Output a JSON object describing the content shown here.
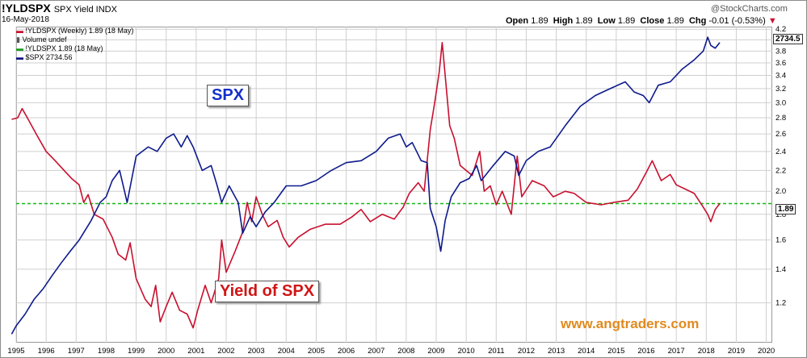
{
  "header": {
    "symbol": "!YLDSPX",
    "name": "SPX Yield INDX",
    "date": "16-May-2018",
    "quote": {
      "open_label": "Open",
      "open": "1.89",
      "high_label": "High",
      "high": "1.89",
      "low_label": "Low",
      "low": "1.89",
      "close_label": "Close",
      "close": "1.89",
      "chg_label": "Chg",
      "chg": "-0.01 (-0.53%)",
      "chg_arrow": "▼"
    },
    "brand": "@StockCharts.com"
  },
  "legend": [
    {
      "text": "!YLDSPX (Weekly) 1.89 (18 May)",
      "color": "#c8102e"
    },
    {
      "text": "Volume undef",
      "color": "#555555"
    },
    {
      "text": "!YLDSPX 1.89 (18 May)",
      "color": "#1a9a1a"
    },
    {
      "text": "$SPX 2734.56",
      "color": "#101080"
    }
  ],
  "annotations": {
    "spx_label": "SPX",
    "yield_label": "Yield of SPX",
    "watermark": "www.angtraders.com",
    "spx_last_tag": "2734.5",
    "yield_last_tag": "1.89"
  },
  "colors": {
    "spx": "#0d1a8c",
    "yield": "#c8102e",
    "reference": "#16b816",
    "grid": "#cfcfcf"
  },
  "chart_data": {
    "type": "line",
    "title": "!YLDSPX SPX Yield INDX",
    "y_axis": {
      "side": "right",
      "ticks": [
        1.2,
        1.4,
        1.6,
        1.8,
        2.0,
        2.2,
        2.4,
        2.6,
        2.8,
        3.0,
        3.2,
        3.4,
        3.6,
        3.8,
        4.0,
        4.2
      ],
      "range": [
        1.0,
        4.25
      ],
      "scale": "log"
    },
    "x_axis": {
      "ticks": [
        "1995",
        "1996",
        "1997",
        "1998",
        "1999",
        "2000",
        "2001",
        "2002",
        "2003",
        "2004",
        "2005",
        "2006",
        "2007",
        "2008",
        "2009",
        "2010",
        "2011",
        "2012",
        "2013",
        "2014",
        "2015",
        "2016",
        "2017",
        "2018",
        "2019",
        "2020"
      ],
      "range": [
        1995.0,
        2020.2
      ]
    },
    "grid": true,
    "legend_position": "top-left",
    "reference_line": {
      "value": 1.89,
      "style": "dashed"
    },
    "series": [
      {
        "name": "!YLDSPX (Weekly) 1.89 (18 May)",
        "points": [
          [
            1994.85,
            2.78
          ],
          [
            1995.05,
            2.8
          ],
          [
            1995.2,
            2.92
          ],
          [
            1995.4,
            2.78
          ],
          [
            1995.7,
            2.58
          ],
          [
            1996.0,
            2.4
          ],
          [
            1996.3,
            2.3
          ],
          [
            1996.6,
            2.2
          ],
          [
            1996.85,
            2.12
          ],
          [
            1997.1,
            2.06
          ],
          [
            1997.25,
            1.9
          ],
          [
            1997.4,
            1.97
          ],
          [
            1997.6,
            1.8
          ],
          [
            1997.9,
            1.76
          ],
          [
            1998.2,
            1.62
          ],
          [
            1998.4,
            1.5
          ],
          [
            1998.65,
            1.46
          ],
          [
            1998.8,
            1.58
          ],
          [
            1999.0,
            1.34
          ],
          [
            1999.3,
            1.22
          ],
          [
            1999.5,
            1.18
          ],
          [
            1999.65,
            1.3
          ],
          [
            1999.8,
            1.1
          ],
          [
            2000.0,
            1.18
          ],
          [
            2000.2,
            1.26
          ],
          [
            2000.45,
            1.16
          ],
          [
            2000.7,
            1.14
          ],
          [
            2000.9,
            1.07
          ],
          [
            2001.05,
            1.16
          ],
          [
            2001.3,
            1.3
          ],
          [
            2001.5,
            1.2
          ],
          [
            2001.75,
            1.34
          ],
          [
            2001.85,
            1.6
          ],
          [
            2002.0,
            1.38
          ],
          [
            2002.3,
            1.52
          ],
          [
            2002.55,
            1.66
          ],
          [
            2002.7,
            1.9
          ],
          [
            2002.85,
            1.74
          ],
          [
            2003.0,
            1.95
          ],
          [
            2003.2,
            1.8
          ],
          [
            2003.4,
            1.7
          ],
          [
            2003.7,
            1.75
          ],
          [
            2003.9,
            1.62
          ],
          [
            2004.1,
            1.55
          ],
          [
            2004.4,
            1.62
          ],
          [
            2004.8,
            1.68
          ],
          [
            2005.3,
            1.72
          ],
          [
            2005.8,
            1.72
          ],
          [
            2006.2,
            1.78
          ],
          [
            2006.5,
            1.84
          ],
          [
            2006.8,
            1.74
          ],
          [
            2007.2,
            1.8
          ],
          [
            2007.6,
            1.76
          ],
          [
            2007.9,
            1.86
          ],
          [
            2008.1,
            1.98
          ],
          [
            2008.4,
            2.08
          ],
          [
            2008.6,
            2.0
          ],
          [
            2008.8,
            2.65
          ],
          [
            2008.95,
            3.0
          ],
          [
            2009.1,
            3.45
          ],
          [
            2009.2,
            3.95
          ],
          [
            2009.3,
            3.4
          ],
          [
            2009.45,
            2.7
          ],
          [
            2009.6,
            2.55
          ],
          [
            2009.8,
            2.25
          ],
          [
            2010.0,
            2.2
          ],
          [
            2010.2,
            2.15
          ],
          [
            2010.45,
            2.4
          ],
          [
            2010.6,
            2.0
          ],
          [
            2010.8,
            2.05
          ],
          [
            2011.0,
            1.88
          ],
          [
            2011.2,
            2.0
          ],
          [
            2011.5,
            1.8
          ],
          [
            2011.7,
            2.35
          ],
          [
            2011.85,
            1.95
          ],
          [
            2012.2,
            2.1
          ],
          [
            2012.6,
            2.05
          ],
          [
            2012.9,
            1.95
          ],
          [
            2013.3,
            2.0
          ],
          [
            2013.6,
            1.98
          ],
          [
            2014.0,
            1.9
          ],
          [
            2014.5,
            1.88
          ],
          [
            2014.9,
            1.9
          ],
          [
            2015.4,
            1.92
          ],
          [
            2015.7,
            2.02
          ],
          [
            2016.0,
            2.18
          ],
          [
            2016.2,
            2.3
          ],
          [
            2016.5,
            2.1
          ],
          [
            2016.8,
            2.16
          ],
          [
            2017.0,
            2.06
          ],
          [
            2017.3,
            2.02
          ],
          [
            2017.6,
            1.98
          ],
          [
            2017.9,
            1.86
          ],
          [
            2018.05,
            1.8
          ],
          [
            2018.15,
            1.74
          ],
          [
            2018.3,
            1.84
          ],
          [
            2018.45,
            1.89
          ]
        ]
      },
      {
        "name": "$SPX 2734.56",
        "points": [
          [
            1994.85,
            1.04
          ],
          [
            1995.0,
            1.08
          ],
          [
            1995.3,
            1.14
          ],
          [
            1995.6,
            1.22
          ],
          [
            1995.9,
            1.28
          ],
          [
            1996.2,
            1.36
          ],
          [
            1996.5,
            1.44
          ],
          [
            1996.8,
            1.52
          ],
          [
            1997.1,
            1.6
          ],
          [
            1997.5,
            1.75
          ],
          [
            1997.8,
            1.9
          ],
          [
            1998.0,
            1.95
          ],
          [
            1998.2,
            2.1
          ],
          [
            1998.45,
            2.2
          ],
          [
            1998.7,
            1.9
          ],
          [
            1999.0,
            2.35
          ],
          [
            1999.4,
            2.45
          ],
          [
            1999.7,
            2.4
          ],
          [
            2000.0,
            2.55
          ],
          [
            2000.25,
            2.6
          ],
          [
            2000.5,
            2.45
          ],
          [
            2000.7,
            2.58
          ],
          [
            2000.9,
            2.45
          ],
          [
            2001.2,
            2.2
          ],
          [
            2001.5,
            2.25
          ],
          [
            2001.7,
            2.05
          ],
          [
            2001.85,
            1.9
          ],
          [
            2002.1,
            2.05
          ],
          [
            2002.4,
            1.9
          ],
          [
            2002.55,
            1.65
          ],
          [
            2002.8,
            1.78
          ],
          [
            2003.0,
            1.7
          ],
          [
            2003.3,
            1.82
          ],
          [
            2003.6,
            1.9
          ],
          [
            2004.0,
            2.05
          ],
          [
            2004.5,
            2.05
          ],
          [
            2005.0,
            2.1
          ],
          [
            2005.5,
            2.2
          ],
          [
            2006.0,
            2.28
          ],
          [
            2006.5,
            2.3
          ],
          [
            2007.0,
            2.4
          ],
          [
            2007.4,
            2.55
          ],
          [
            2007.8,
            2.6
          ],
          [
            2008.0,
            2.45
          ],
          [
            2008.2,
            2.5
          ],
          [
            2008.5,
            2.3
          ],
          [
            2008.7,
            2.28
          ],
          [
            2008.8,
            1.85
          ],
          [
            2009.0,
            1.7
          ],
          [
            2009.15,
            1.52
          ],
          [
            2009.3,
            1.75
          ],
          [
            2009.5,
            1.95
          ],
          [
            2009.8,
            2.08
          ],
          [
            2010.1,
            2.12
          ],
          [
            2010.35,
            2.25
          ],
          [
            2010.5,
            2.1
          ],
          [
            2010.9,
            2.25
          ],
          [
            2011.3,
            2.4
          ],
          [
            2011.6,
            2.35
          ],
          [
            2011.75,
            2.15
          ],
          [
            2012.0,
            2.3
          ],
          [
            2012.4,
            2.4
          ],
          [
            2012.8,
            2.45
          ],
          [
            2013.3,
            2.7
          ],
          [
            2013.8,
            2.95
          ],
          [
            2014.3,
            3.1
          ],
          [
            2014.8,
            3.2
          ],
          [
            2015.3,
            3.3
          ],
          [
            2015.6,
            3.15
          ],
          [
            2015.9,
            3.1
          ],
          [
            2016.1,
            3.0
          ],
          [
            2016.4,
            3.25
          ],
          [
            2016.8,
            3.3
          ],
          [
            2017.2,
            3.5
          ],
          [
            2017.6,
            3.65
          ],
          [
            2017.9,
            3.8
          ],
          [
            2018.05,
            4.05
          ],
          [
            2018.15,
            3.9
          ],
          [
            2018.3,
            3.85
          ],
          [
            2018.45,
            3.95
          ]
        ]
      }
    ]
  }
}
